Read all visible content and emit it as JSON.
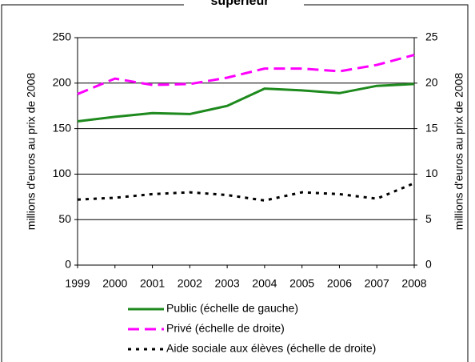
{
  "chart_data": {
    "type": "line",
    "title": "supérieur",
    "categories": [
      "1999",
      "2000",
      "2001",
      "2002",
      "2003",
      "2004",
      "2005",
      "2006",
      "2007",
      "2008"
    ],
    "ylabel": "millions d'euros au prix de 2008",
    "y2label": "millions d'euros au prix de 2008",
    "ylim": [
      0,
      250
    ],
    "yticks": [
      0,
      50,
      100,
      150,
      200,
      250
    ],
    "y2lim": [
      0,
      25
    ],
    "y2ticks": [
      0,
      5,
      10,
      15,
      20,
      25
    ],
    "grid": true,
    "legend": "bottom",
    "series": [
      {
        "name": "Public (échelle de gauche)",
        "color": "#1e8a1e",
        "dash": "solid",
        "values": [
          158,
          163,
          167,
          166,
          175,
          194,
          192,
          189,
          197,
          199
        ]
      },
      {
        "name": "Privé (échelle de droite)",
        "color": "#ff00ff",
        "dash": "dashed",
        "axis": "y2",
        "values": [
          18.8,
          20.5,
          19.8,
          19.9,
          20.6,
          21.6,
          21.6,
          21.3,
          22.0,
          23.1
        ]
      },
      {
        "name": "Aide sociale aux élèves (échelle de droite)",
        "color": "#000000",
        "dash": "dotted",
        "axis": "y2",
        "values": [
          7.2,
          7.4,
          7.8,
          8.0,
          7.7,
          7.1,
          8.0,
          7.8,
          7.3,
          9.0
        ]
      }
    ]
  }
}
